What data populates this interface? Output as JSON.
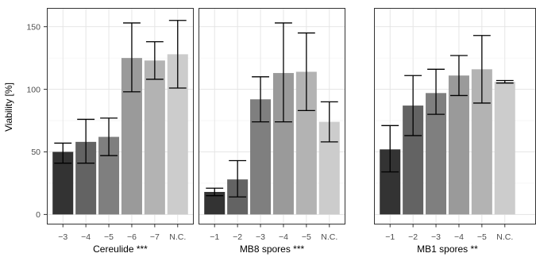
{
  "chart_data": {
    "type": "bar",
    "ylabel": "Viability [%]",
    "ylim": [
      -8,
      165
    ],
    "yticks": [
      0,
      50,
      100,
      150
    ],
    "grid": true,
    "fill_colors": [
      "#333333",
      "#636363",
      "#7f7f7f",
      "#9a9a9a",
      "#b3b3b3",
      "#cccccc"
    ],
    "panels": [
      {
        "xlabel": "Cereulide ***",
        "categories": [
          "−3",
          "−4",
          "−5",
          "−6",
          "−7",
          "N.C."
        ],
        "values": [
          50,
          58,
          62,
          125,
          123,
          128
        ],
        "err_low": [
          41,
          41,
          47,
          98,
          108,
          101
        ],
        "err_high": [
          57,
          76,
          77,
          153,
          138,
          155
        ]
      },
      {
        "xlabel": "MB8 spores ***",
        "categories": [
          "−1",
          "−2",
          "−3",
          "−4",
          "−5",
          "N.C."
        ],
        "values": [
          18,
          28,
          92,
          113,
          114,
          74
        ],
        "err_low": [
          15,
          14,
          74,
          74,
          83,
          58
        ],
        "err_high": [
          21,
          43,
          110,
          153,
          145,
          90
        ]
      },
      {
        "xlabel": "MB1 spores **",
        "categories": [
          "−1",
          "−2",
          "−3",
          "−4",
          "−5",
          "N.C."
        ],
        "values": [
          52,
          87,
          97,
          111,
          116,
          106
        ],
        "err_low": [
          34,
          63,
          80,
          95,
          89,
          105
        ],
        "err_high": [
          71,
          111,
          116,
          127,
          143,
          107
        ]
      }
    ]
  }
}
